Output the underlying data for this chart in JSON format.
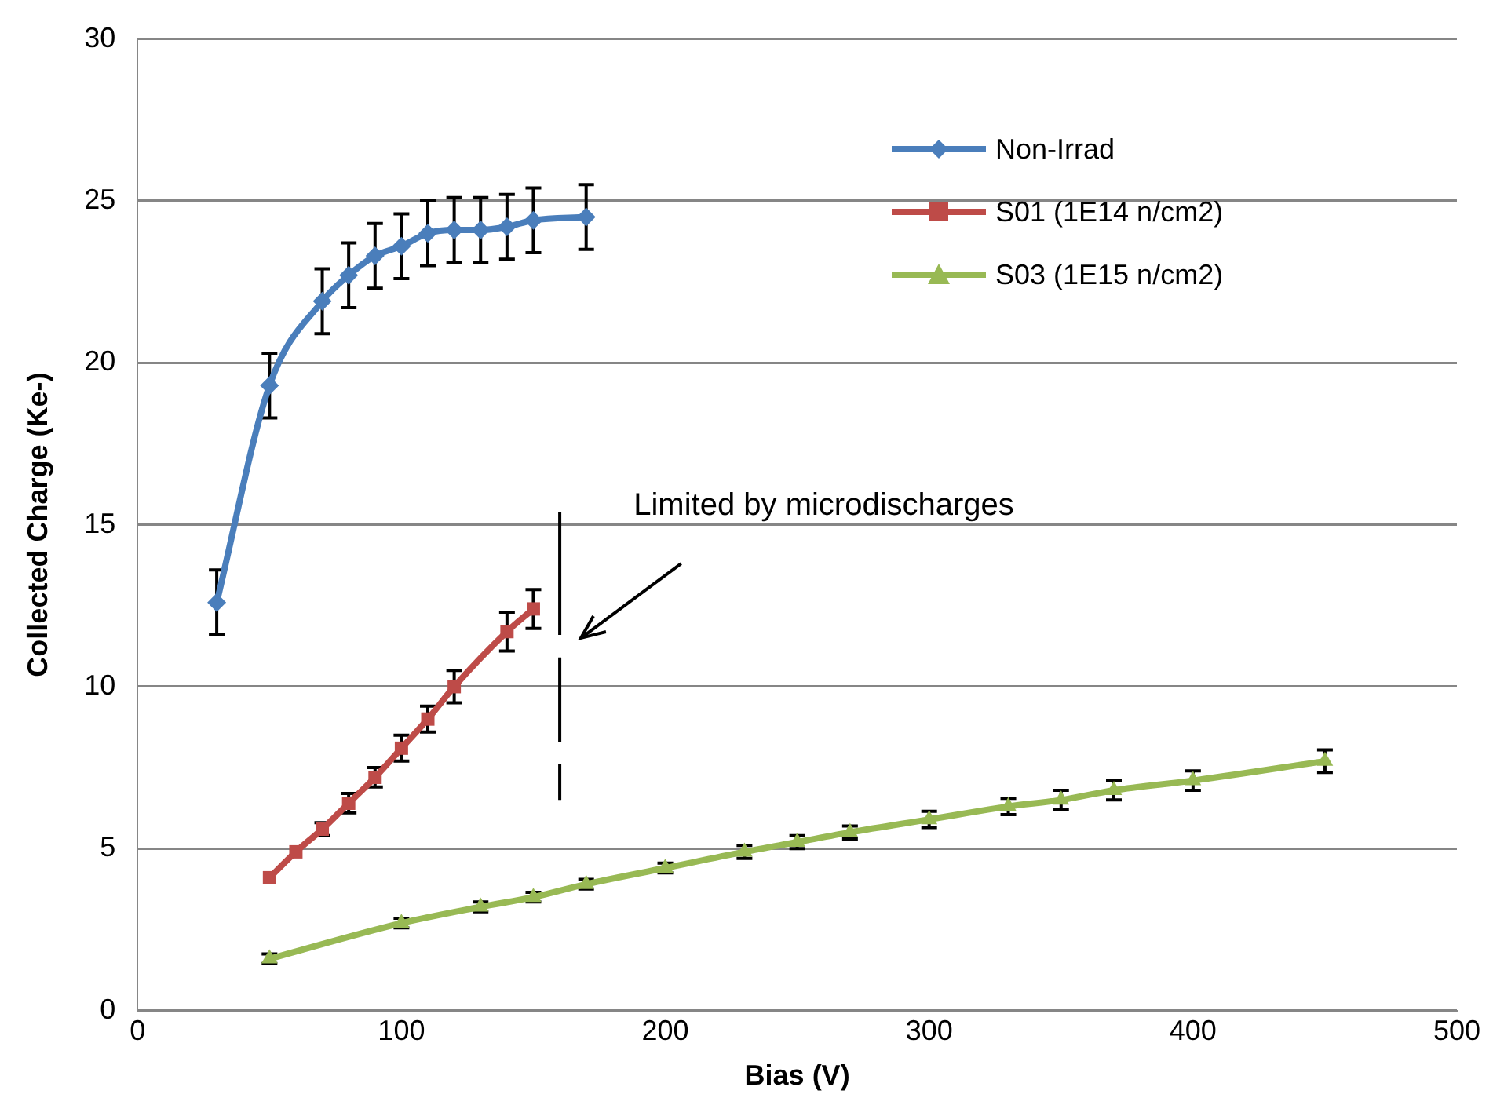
{
  "chart_data": {
    "type": "line",
    "xlabel": "Bias (V)",
    "ylabel": "Collected Charge (Ke-)",
    "xlim": [
      0,
      500
    ],
    "xticks": [
      0,
      100,
      200,
      300,
      400,
      500
    ],
    "ylim": [
      0,
      30
    ],
    "yticks": [
      0,
      5,
      10,
      15,
      20,
      25,
      30
    ],
    "grid": "y",
    "legend": "top right",
    "annotations": [
      "Limited by microdischarges"
    ],
    "series": [
      {
        "name": "Non-Irrad",
        "color": "#4a7ebb",
        "marker": "diamond",
        "x": [
          30,
          50,
          70,
          80,
          90,
          100,
          110,
          120,
          130,
          140,
          150,
          170
        ],
        "values": [
          12.6,
          19.3,
          21.9,
          22.7,
          23.3,
          23.6,
          24.0,
          24.1,
          24.1,
          24.2,
          24.4,
          24.5
        ],
        "errors": [
          1,
          1,
          1,
          1,
          1,
          1,
          1,
          1,
          1,
          1,
          1,
          1
        ]
      },
      {
        "name": "S01 (1E14 n/cm2)",
        "color": "#be4b48",
        "marker": "square",
        "x": [
          50,
          60,
          70,
          80,
          90,
          100,
          110,
          120,
          140,
          150
        ],
        "values": [
          4.1,
          4.9,
          5.6,
          6.4,
          7.2,
          8.1,
          9.0,
          10.0,
          11.7,
          12.4
        ],
        "errors": [
          null,
          null,
          0.2,
          0.3,
          0.3,
          0.4,
          0.4,
          0.5,
          0.6,
          0.6
        ]
      },
      {
        "name": "S03 (1E15 n/cm2)",
        "color": "#98b954",
        "marker": "triangle",
        "x": [
          50,
          100,
          130,
          150,
          170,
          200,
          230,
          250,
          270,
          300,
          330,
          350,
          370,
          400,
          450
        ],
        "values": [
          1.6,
          2.7,
          3.2,
          3.5,
          3.9,
          4.4,
          4.9,
          5.2,
          5.5,
          5.9,
          6.3,
          6.5,
          6.8,
          7.1,
          7.7
        ],
        "errors": [
          0.15,
          0.15,
          0.15,
          0.15,
          0.15,
          0.15,
          0.2,
          0.2,
          0.2,
          0.25,
          0.25,
          0.3,
          0.3,
          0.3,
          0.35
        ]
      }
    ]
  }
}
